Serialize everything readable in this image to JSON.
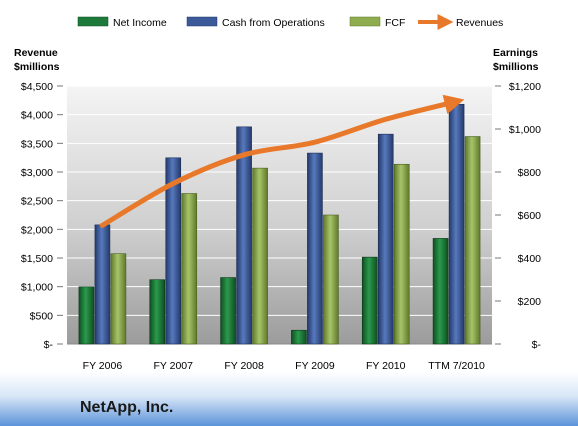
{
  "chart_data": {
    "type": "bar",
    "categories": [
      "FY 2006",
      "FY 2007",
      "FY 2008",
      "FY 2009",
      "FY 2010",
      "TTM 7/2010"
    ],
    "series": [
      {
        "name": "Net Income",
        "axis": "right",
        "values": [
          266,
          299,
          309,
          64,
          404,
          491
        ]
      },
      {
        "name": "Cash from Operations",
        "axis": "right",
        "values": [
          554,
          866,
          1010,
          888,
          976,
          1115
        ]
      },
      {
        "name": "FCF",
        "axis": "right",
        "values": [
          420,
          700,
          818,
          600,
          836,
          965
        ]
      },
      {
        "name": "Revenues",
        "type": "line",
        "axis": "left",
        "values": [
          2070,
          2800,
          3300,
          3520,
          3920,
          4230
        ]
      }
    ],
    "left_axis": {
      "label_line1": "Revenue",
      "label_line2": "$millions",
      "ylim": [
        0,
        4500
      ],
      "ticks": [
        0,
        500,
        1000,
        1500,
        2000,
        2500,
        3000,
        3500,
        4000,
        4500
      ],
      "tick_labels": [
        "$-",
        "$500",
        "$1,000",
        "$1,500",
        "$2,000",
        "$2,500",
        "$3,000",
        "$3,500",
        "$4,000",
        "$4,500"
      ]
    },
    "right_axis": {
      "label_line1": "Earnings",
      "label_line2": "$millions",
      "ylim": [
        0,
        1200
      ],
      "ticks": [
        0,
        200,
        400,
        600,
        800,
        1000,
        1200
      ],
      "tick_labels": [
        "$-",
        "$200",
        "$400",
        "$600",
        "$800",
        "$1,000",
        "$1,200"
      ]
    },
    "legend": {
      "position": "top",
      "items": [
        "Net Income",
        "Cash from Operations",
        "FCF",
        "Revenues"
      ]
    },
    "grid": true,
    "colors": {
      "net_income": "#1d7a3a",
      "cash_from_operations": "#3c5a99",
      "fcf": "#8fac4e",
      "revenues": "#e8792a"
    }
  },
  "company_name": "NetApp, Inc."
}
